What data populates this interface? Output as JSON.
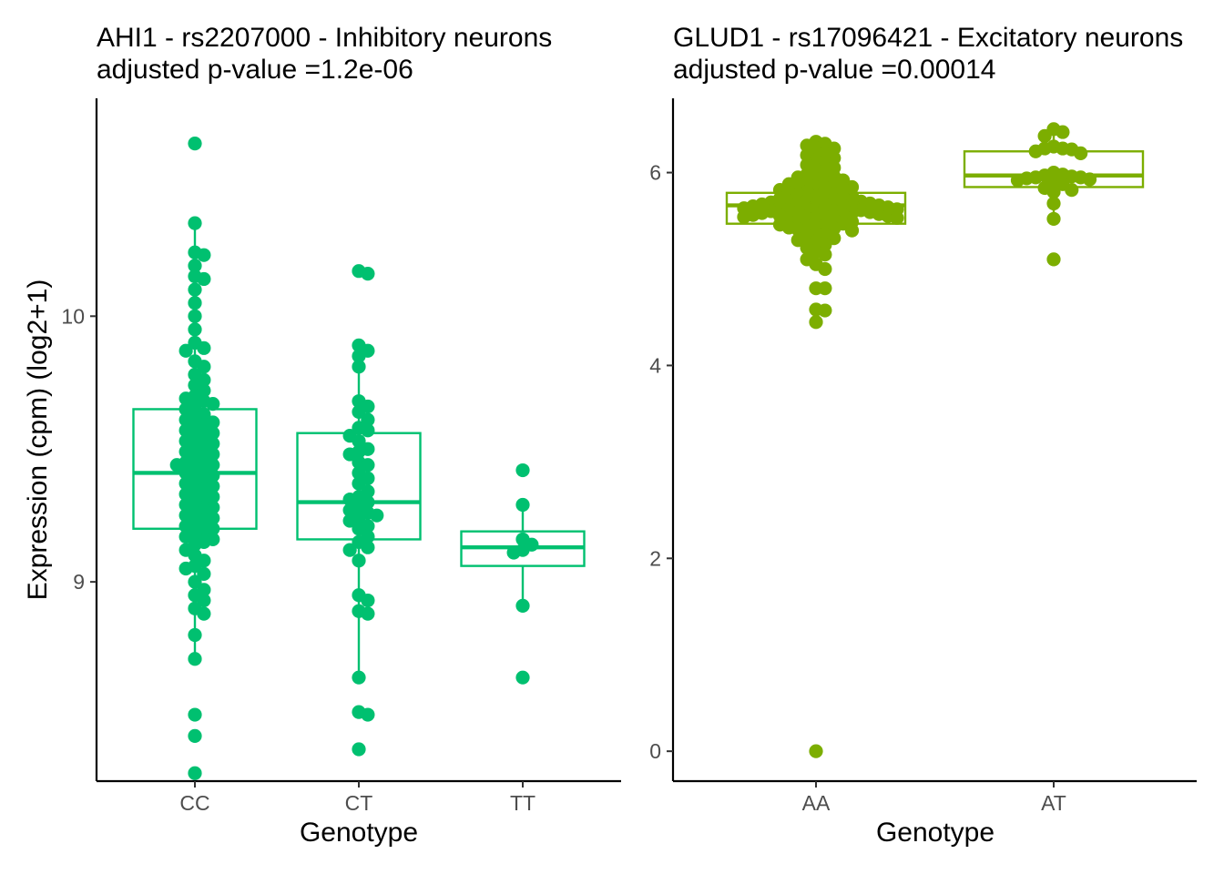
{
  "chart_data": [
    {
      "type": "box",
      "title": "AHI1 - rs2207000 - Inhibitory neurons",
      "subtitle": "adjusted p-value =1.2e-06",
      "xlabel": "Genotype",
      "ylabel": "Expression (cpm) (log2+1)",
      "ylim": [
        8.25,
        10.82
      ],
      "yticks": [
        9,
        10
      ],
      "color": "#00c070",
      "categories": [
        "CC",
        "CT",
        "TT"
      ],
      "boxes": [
        {
          "category": "CC",
          "q1": 9.2,
          "median": 9.41,
          "q3": 9.65,
          "whisker_low": 8.71,
          "whisker_high": 10.35
        },
        {
          "category": "CT",
          "q1": 9.16,
          "median": 9.3,
          "q3": 9.56,
          "whisker_low": 8.62,
          "whisker_high": 9.89
        },
        {
          "category": "TT",
          "q1": 9.06,
          "median": 9.13,
          "q3": 9.19,
          "whisker_low": 8.91,
          "whisker_high": 9.28
        }
      ],
      "points": [
        {
          "category": "CC",
          "y": [
            10.65,
            10.35,
            10.24,
            10.23,
            10.19,
            10.15,
            10.14,
            10.1,
            10.05,
            10.0,
            9.95,
            9.9,
            9.88,
            9.87,
            9.83,
            9.81,
            9.78,
            9.76,
            9.74,
            9.72,
            9.7,
            9.69,
            9.68,
            9.67,
            9.66,
            9.65,
            9.63,
            9.62,
            9.61,
            9.6,
            9.59,
            9.58,
            9.57,
            9.56,
            9.55,
            9.54,
            9.53,
            9.52,
            9.51,
            9.5,
            9.49,
            9.48,
            9.47,
            9.46,
            9.45,
            9.44,
            9.44,
            9.43,
            9.42,
            9.41,
            9.4,
            9.39,
            9.38,
            9.37,
            9.36,
            9.35,
            9.34,
            9.33,
            9.32,
            9.31,
            9.3,
            9.29,
            9.28,
            9.27,
            9.26,
            9.25,
            9.24,
            9.23,
            9.22,
            9.21,
            9.2,
            9.19,
            9.18,
            9.17,
            9.16,
            9.15,
            9.14,
            9.12,
            9.1,
            9.08,
            9.06,
            9.05,
            9.03,
            9.0,
            8.97,
            8.95,
            8.93,
            8.9,
            8.88,
            8.8,
            8.71,
            8.5,
            8.42,
            8.28
          ]
        },
        {
          "category": "CT",
          "y": [
            10.17,
            10.16,
            9.89,
            9.87,
            9.85,
            9.81,
            9.68,
            9.66,
            9.64,
            9.61,
            9.58,
            9.57,
            9.55,
            9.53,
            9.5,
            9.49,
            9.48,
            9.45,
            9.44,
            9.41,
            9.39,
            9.37,
            9.34,
            9.32,
            9.31,
            9.3,
            9.28,
            9.27,
            9.26,
            9.25,
            9.24,
            9.23,
            9.21,
            9.2,
            9.17,
            9.15,
            9.13,
            9.12,
            9.08,
            8.95,
            8.93,
            8.89,
            8.88,
            8.64,
            8.51,
            8.5,
            8.37
          ]
        },
        {
          "category": "TT",
          "y": [
            9.42,
            9.29,
            9.16,
            9.14,
            9.12,
            9.11,
            8.91,
            8.64
          ]
        }
      ]
    },
    {
      "type": "box",
      "title": "GLUD1 - rs17096421 - Excitatory neurons",
      "subtitle": "adjusted p-value =0.00014",
      "xlabel": "Genotype",
      "ylabel": "",
      "ylim": [
        -0.31,
        6.77
      ],
      "yticks": [
        0,
        2,
        4,
        6
      ],
      "color": "#7cae00",
      "categories": [
        "AA",
        "AT"
      ],
      "boxes": [
        {
          "category": "AA",
          "q1": 5.47,
          "median": 5.66,
          "q3": 5.79,
          "whisker_low": 4.99,
          "whisker_high": 6.28
        },
        {
          "category": "AT",
          "q1": 5.85,
          "median": 5.97,
          "q3": 6.22,
          "whisker_low": 5.54,
          "whisker_high": 6.45
        }
      ],
      "points": [
        {
          "category": "AA",
          "y": [
            6.32,
            6.3,
            6.28,
            6.25,
            6.22,
            6.2,
            6.18,
            6.15,
            6.12,
            6.1,
            6.08,
            6.05,
            6.03,
            6.0,
            5.98,
            5.96,
            5.95,
            5.93,
            5.92,
            5.9,
            5.89,
            5.88,
            5.87,
            5.86,
            5.85,
            5.84,
            5.83,
            5.82,
            5.81,
            5.8,
            5.79,
            5.78,
            5.77,
            5.76,
            5.75,
            5.74,
            5.73,
            5.72,
            5.71,
            5.7,
            5.7,
            5.69,
            5.69,
            5.68,
            5.68,
            5.67,
            5.67,
            5.66,
            5.66,
            5.65,
            5.65,
            5.64,
            5.64,
            5.63,
            5.63,
            5.62,
            5.62,
            5.61,
            5.61,
            5.6,
            5.6,
            5.59,
            5.59,
            5.58,
            5.58,
            5.57,
            5.57,
            5.56,
            5.56,
            5.55,
            5.55,
            5.54,
            5.54,
            5.53,
            5.53,
            5.52,
            5.51,
            5.5,
            5.49,
            5.48,
            5.47,
            5.46,
            5.45,
            5.44,
            5.43,
            5.42,
            5.41,
            5.4,
            5.38,
            5.36,
            5.34,
            5.32,
            5.3,
            5.28,
            5.25,
            5.22,
            5.18,
            5.15,
            5.1,
            5.05,
            5.0,
            4.8,
            4.8,
            4.58,
            4.57,
            4.45,
            0.0
          ]
        },
        {
          "category": "AT",
          "y": [
            6.45,
            6.42,
            6.38,
            6.27,
            6.25,
            6.25,
            6.24,
            6.22,
            6.2,
            6.0,
            5.98,
            5.97,
            5.96,
            5.95,
            5.95,
            5.94,
            5.93,
            5.92,
            5.9,
            5.88,
            5.84,
            5.82,
            5.8,
            5.68,
            5.52,
            5.1
          ]
        }
      ]
    }
  ]
}
